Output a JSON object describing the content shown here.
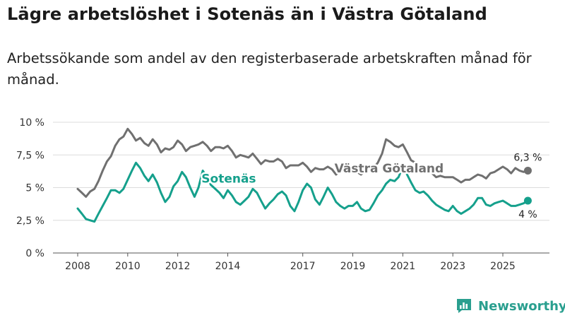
{
  "title": "Lägre arbetslöshet i Sotenäs än i Västra Götaland",
  "subtitle": "Arbetssökande som andel av den registerbaserade arbetskraften månad för månad.",
  "brand": {
    "name": "Newsworthy",
    "icon": "newsworthy-logo-icon",
    "color": "#2a9f8f"
  },
  "chart_data": {
    "type": "line",
    "title": "Lägre arbetslöshet i Sotenäs än i Västra Götaland",
    "subtitle": "Arbetssökande som andel av den registerbaserade arbetskraften månad för månad.",
    "xlabel": "",
    "ylabel": "",
    "xlim": [
      2008.0,
      2026.2
    ],
    "ylim": [
      0,
      10
    ],
    "x_ticks": [
      2008,
      2010,
      2012,
      2014,
      2017,
      2019,
      2021,
      2023,
      2025
    ],
    "x_tick_labels": [
      "2008",
      "2010",
      "2012",
      "2014",
      "2017",
      "2019",
      "2021",
      "2023",
      "2025"
    ],
    "y_ticks": [
      0,
      2.5,
      5,
      7.5,
      10
    ],
    "y_tick_labels": [
      "0 %",
      "2,5 %",
      "5 %",
      "7,5 %",
      "10 %"
    ],
    "grid": "horizontal",
    "series": [
      {
        "name": "Västra Götaland",
        "color": "#707070",
        "label": "Västra Götaland",
        "end_label": "6,3 %",
        "points": [
          [
            2008.0,
            4.9
          ],
          [
            2008.17,
            4.6
          ],
          [
            2008.33,
            4.3
          ],
          [
            2008.5,
            4.7
          ],
          [
            2008.67,
            4.9
          ],
          [
            2008.83,
            5.5
          ],
          [
            2009.0,
            6.3
          ],
          [
            2009.17,
            7.0
          ],
          [
            2009.33,
            7.4
          ],
          [
            2009.5,
            8.2
          ],
          [
            2009.67,
            8.7
          ],
          [
            2009.83,
            8.9
          ],
          [
            2010.0,
            9.5
          ],
          [
            2010.17,
            9.1
          ],
          [
            2010.33,
            8.6
          ],
          [
            2010.5,
            8.8
          ],
          [
            2010.67,
            8.4
          ],
          [
            2010.83,
            8.2
          ],
          [
            2011.0,
            8.7
          ],
          [
            2011.17,
            8.3
          ],
          [
            2011.33,
            7.7
          ],
          [
            2011.5,
            8.0
          ],
          [
            2011.67,
            7.9
          ],
          [
            2011.83,
            8.1
          ],
          [
            2012.0,
            8.6
          ],
          [
            2012.17,
            8.3
          ],
          [
            2012.33,
            7.8
          ],
          [
            2012.5,
            8.1
          ],
          [
            2012.67,
            8.2
          ],
          [
            2012.83,
            8.3
          ],
          [
            2013.0,
            8.5
          ],
          [
            2013.17,
            8.2
          ],
          [
            2013.33,
            7.8
          ],
          [
            2013.5,
            8.1
          ],
          [
            2013.67,
            8.1
          ],
          [
            2013.83,
            8.0
          ],
          [
            2014.0,
            8.2
          ],
          [
            2014.17,
            7.8
          ],
          [
            2014.33,
            7.3
          ],
          [
            2014.5,
            7.5
          ],
          [
            2014.67,
            7.4
          ],
          [
            2014.83,
            7.3
          ],
          [
            2015.0,
            7.6
          ],
          [
            2015.17,
            7.2
          ],
          [
            2015.33,
            6.8
          ],
          [
            2015.5,
            7.1
          ],
          [
            2015.67,
            7.0
          ],
          [
            2015.83,
            7.0
          ],
          [
            2016.0,
            7.2
          ],
          [
            2016.17,
            7.0
          ],
          [
            2016.33,
            6.5
          ],
          [
            2016.5,
            6.7
          ],
          [
            2016.67,
            6.7
          ],
          [
            2016.83,
            6.7
          ],
          [
            2017.0,
            6.9
          ],
          [
            2017.17,
            6.6
          ],
          [
            2017.33,
            6.2
          ],
          [
            2017.5,
            6.5
          ],
          [
            2017.67,
            6.4
          ],
          [
            2017.83,
            6.4
          ],
          [
            2018.0,
            6.6
          ],
          [
            2018.17,
            6.4
          ],
          [
            2018.33,
            6.0
          ],
          [
            2018.5,
            6.3
          ],
          [
            2018.67,
            6.2
          ],
          [
            2018.83,
            6.2
          ],
          [
            2019.0,
            6.4
          ],
          [
            2019.17,
            6.2
          ],
          [
            2019.33,
            6.0
          ],
          [
            2019.5,
            6.3
          ],
          [
            2019.67,
            6.3
          ],
          [
            2019.83,
            6.5
          ],
          [
            2020.0,
            6.9
          ],
          [
            2020.17,
            7.6
          ],
          [
            2020.33,
            8.7
          ],
          [
            2020.5,
            8.5
          ],
          [
            2020.67,
            8.2
          ],
          [
            2020.83,
            8.1
          ],
          [
            2021.0,
            8.3
          ],
          [
            2021.17,
            7.7
          ],
          [
            2021.33,
            7.1
          ],
          [
            2021.5,
            6.9
          ],
          [
            2021.67,
            6.6
          ],
          [
            2021.83,
            6.3
          ],
          [
            2022.0,
            6.4
          ],
          [
            2022.17,
            6.1
          ],
          [
            2022.33,
            5.8
          ],
          [
            2022.5,
            5.9
          ],
          [
            2022.67,
            5.8
          ],
          [
            2022.83,
            5.8
          ],
          [
            2023.0,
            5.8
          ],
          [
            2023.17,
            5.6
          ],
          [
            2023.33,
            5.4
          ],
          [
            2023.5,
            5.6
          ],
          [
            2023.67,
            5.6
          ],
          [
            2023.83,
            5.8
          ],
          [
            2024.0,
            6.0
          ],
          [
            2024.17,
            5.9
          ],
          [
            2024.33,
            5.7
          ],
          [
            2024.5,
            6.1
          ],
          [
            2024.67,
            6.2
          ],
          [
            2024.83,
            6.4
          ],
          [
            2025.0,
            6.6
          ],
          [
            2025.17,
            6.4
          ],
          [
            2025.33,
            6.1
          ],
          [
            2025.5,
            6.5
          ],
          [
            2025.67,
            6.3
          ],
          [
            2025.83,
            6.2
          ],
          [
            2026.0,
            6.3
          ]
        ]
      },
      {
        "name": "Sotenäs",
        "color": "#15a08c",
        "label": "Sotenäs",
        "end_label": "4 %",
        "points": [
          [
            2008.0,
            3.4
          ],
          [
            2008.17,
            3.0
          ],
          [
            2008.33,
            2.6
          ],
          [
            2008.5,
            2.5
          ],
          [
            2008.67,
            2.4
          ],
          [
            2008.83,
            3.0
          ],
          [
            2009.0,
            3.6
          ],
          [
            2009.17,
            4.2
          ],
          [
            2009.33,
            4.8
          ],
          [
            2009.5,
            4.8
          ],
          [
            2009.67,
            4.6
          ],
          [
            2009.83,
            4.9
          ],
          [
            2010.0,
            5.6
          ],
          [
            2010.17,
            6.3
          ],
          [
            2010.33,
            6.9
          ],
          [
            2010.5,
            6.5
          ],
          [
            2010.67,
            5.9
          ],
          [
            2010.83,
            5.5
          ],
          [
            2011.0,
            6.0
          ],
          [
            2011.17,
            5.4
          ],
          [
            2011.33,
            4.6
          ],
          [
            2011.5,
            3.9
          ],
          [
            2011.67,
            4.3
          ],
          [
            2011.83,
            5.1
          ],
          [
            2012.0,
            5.5
          ],
          [
            2012.17,
            6.2
          ],
          [
            2012.33,
            5.8
          ],
          [
            2012.5,
            5.0
          ],
          [
            2012.67,
            4.3
          ],
          [
            2012.83,
            5.0
          ],
          [
            2013.0,
            6.3
          ],
          [
            2013.17,
            5.8
          ],
          [
            2013.33,
            5.2
          ],
          [
            2013.5,
            4.9
          ],
          [
            2013.67,
            4.6
          ],
          [
            2013.83,
            4.2
          ],
          [
            2014.0,
            4.8
          ],
          [
            2014.17,
            4.4
          ],
          [
            2014.33,
            3.9
          ],
          [
            2014.5,
            3.7
          ],
          [
            2014.67,
            4.0
          ],
          [
            2014.83,
            4.3
          ],
          [
            2015.0,
            4.9
          ],
          [
            2015.17,
            4.6
          ],
          [
            2015.33,
            4.0
          ],
          [
            2015.5,
            3.4
          ],
          [
            2015.67,
            3.8
          ],
          [
            2015.83,
            4.1
          ],
          [
            2016.0,
            4.5
          ],
          [
            2016.17,
            4.7
          ],
          [
            2016.33,
            4.4
          ],
          [
            2016.5,
            3.6
          ],
          [
            2016.67,
            3.2
          ],
          [
            2016.83,
            3.9
          ],
          [
            2017.0,
            4.8
          ],
          [
            2017.17,
            5.3
          ],
          [
            2017.33,
            5.0
          ],
          [
            2017.5,
            4.1
          ],
          [
            2017.67,
            3.7
          ],
          [
            2017.83,
            4.3
          ],
          [
            2018.0,
            5.0
          ],
          [
            2018.17,
            4.5
          ],
          [
            2018.33,
            3.9
          ],
          [
            2018.5,
            3.6
          ],
          [
            2018.67,
            3.4
          ],
          [
            2018.83,
            3.6
          ],
          [
            2019.0,
            3.6
          ],
          [
            2019.17,
            3.9
          ],
          [
            2019.33,
            3.4
          ],
          [
            2019.5,
            3.2
          ],
          [
            2019.67,
            3.3
          ],
          [
            2019.83,
            3.8
          ],
          [
            2020.0,
            4.4
          ],
          [
            2020.17,
            4.8
          ],
          [
            2020.33,
            5.3
          ],
          [
            2020.5,
            5.6
          ],
          [
            2020.67,
            5.5
          ],
          [
            2020.83,
            5.8
          ],
          [
            2021.0,
            6.6
          ],
          [
            2021.17,
            6.0
          ],
          [
            2021.33,
            5.4
          ],
          [
            2021.5,
            4.8
          ],
          [
            2021.67,
            4.6
          ],
          [
            2021.83,
            4.7
          ],
          [
            2022.0,
            4.4
          ],
          [
            2022.17,
            4.0
          ],
          [
            2022.33,
            3.7
          ],
          [
            2022.5,
            3.5
          ],
          [
            2022.67,
            3.3
          ],
          [
            2022.83,
            3.2
          ],
          [
            2023.0,
            3.6
          ],
          [
            2023.17,
            3.2
          ],
          [
            2023.33,
            3.0
          ],
          [
            2023.5,
            3.2
          ],
          [
            2023.67,
            3.4
          ],
          [
            2023.83,
            3.7
          ],
          [
            2024.0,
            4.2
          ],
          [
            2024.17,
            4.2
          ],
          [
            2024.33,
            3.7
          ],
          [
            2024.5,
            3.6
          ],
          [
            2024.67,
            3.8
          ],
          [
            2024.83,
            3.9
          ],
          [
            2025.0,
            4.0
          ],
          [
            2025.17,
            3.8
          ],
          [
            2025.33,
            3.6
          ],
          [
            2025.5,
            3.6
          ],
          [
            2025.67,
            3.7
          ],
          [
            2025.83,
            3.8
          ],
          [
            2026.0,
            4.0
          ]
        ]
      }
    ]
  }
}
